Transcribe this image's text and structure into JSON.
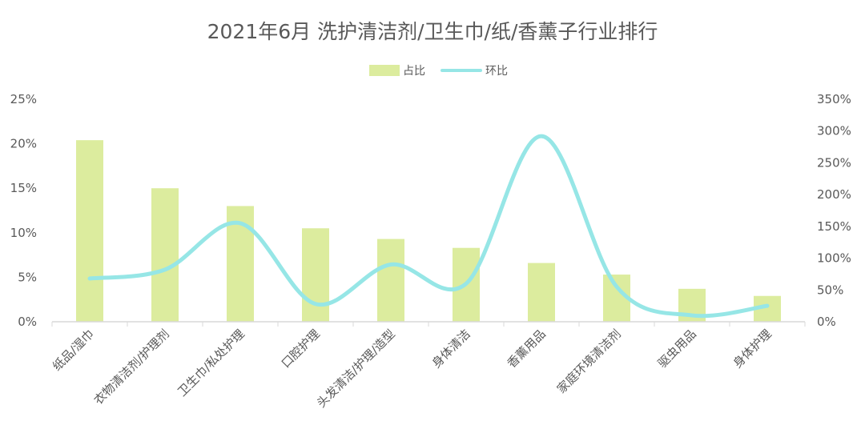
{
  "chart_data": {
    "type": "bar",
    "title": "2021年6月 洗护清洁剂/卫生巾/纸/香薰子行业排行",
    "categories": [
      "纸品/湿巾",
      "衣物清洁剂/护理剂",
      "卫生巾/私处护理",
      "口腔护理",
      "头发清洁/护理/造型",
      "身体清洁",
      "香薰用品",
      "家庭环境清洁剂",
      "驱虫用品",
      "身体护理"
    ],
    "series": [
      {
        "name": "占比",
        "type": "bar",
        "axis": "left",
        "color": "#dcec9e",
        "values": [
          20.4,
          15.0,
          13.0,
          10.5,
          9.3,
          8.3,
          6.6,
          5.3,
          3.7,
          2.9
        ]
      },
      {
        "name": "环比",
        "type": "line",
        "axis": "right",
        "color": "#96e6e6",
        "values": [
          68,
          82,
          155,
          28,
          90,
          60,
          292,
          55,
          10,
          25
        ]
      }
    ],
    "y_left": {
      "min": 0,
      "max": 25,
      "ticks": [
        "0%",
        "5%",
        "10%",
        "15%",
        "20%",
        "25%"
      ]
    },
    "y_right": {
      "min": 0,
      "max": 350,
      "ticks": [
        "0%",
        "50%",
        "100%",
        "150%",
        "200%",
        "250%",
        "300%",
        "350%"
      ]
    },
    "legend_position": "top",
    "grid": false
  }
}
